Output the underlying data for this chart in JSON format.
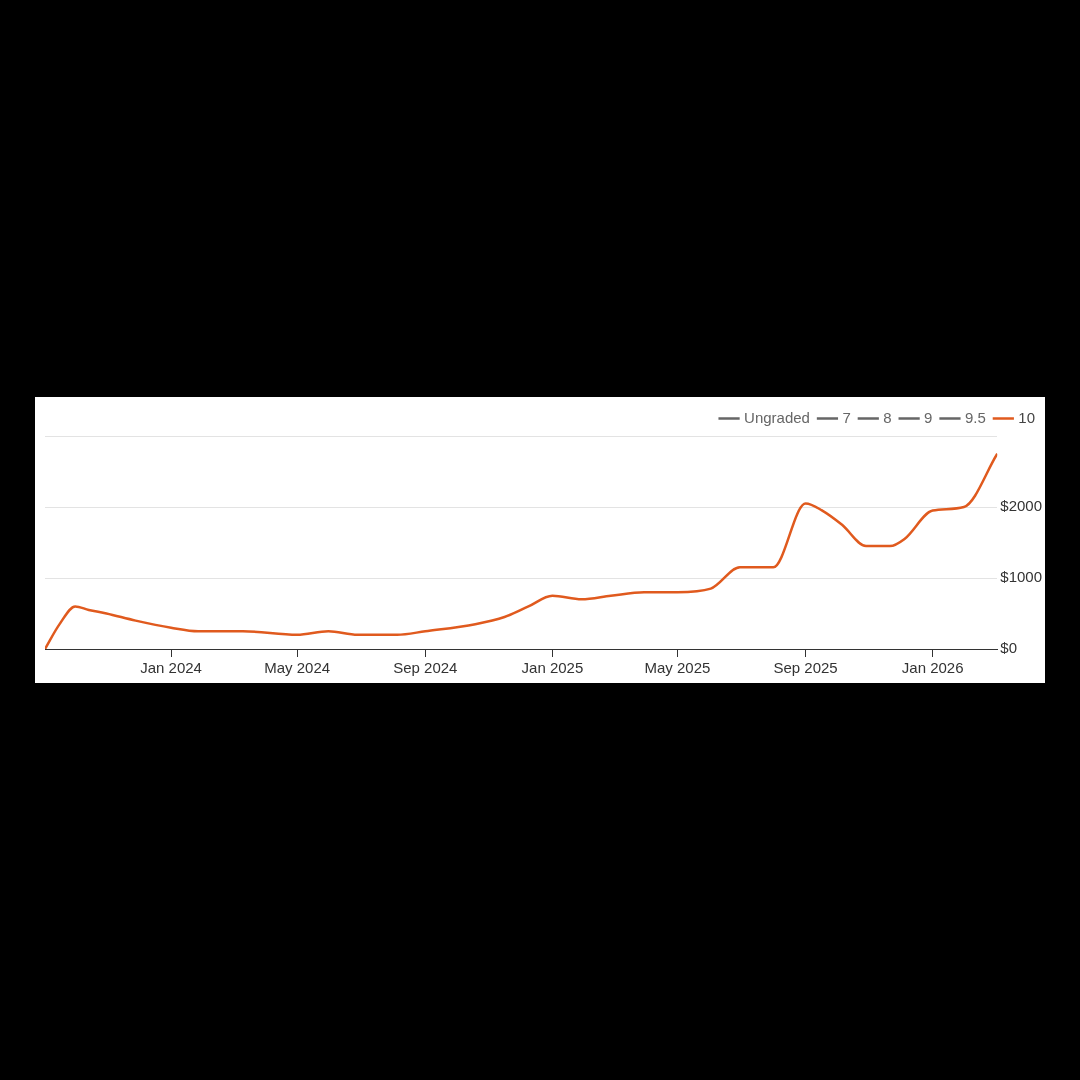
{
  "chart_data": {
    "type": "line",
    "x": [
      "2023-09-02",
      "2023-09-16",
      "2023-10-01",
      "2023-10-14",
      "2023-10-31",
      "2023-11-28",
      "2024-01-01",
      "2024-01-27",
      "2024-03-10",
      "2024-05-01",
      "2024-05-31",
      "2024-06-28",
      "2024-08-05",
      "2024-09-01",
      "2024-10-19",
      "2024-11-16",
      "2024-12-09",
      "2025-01-01",
      "2025-01-29",
      "2025-02-26",
      "2025-03-30",
      "2025-05-01",
      "2025-06-02",
      "2025-06-30",
      "2025-08-01",
      "2025-09-01",
      "2025-09-17",
      "2025-10-06",
      "2025-10-29",
      "2025-11-21",
      "2025-12-05",
      "2026-01-01",
      "2026-01-31",
      "2026-03-04"
    ],
    "series": [
      {
        "name": "Ungraded",
        "color": "#666666",
        "values": [
          null,
          null,
          null,
          null,
          null,
          null,
          null,
          null,
          null,
          null,
          null,
          null,
          null,
          null,
          null,
          null,
          null,
          null,
          null,
          null,
          null,
          null,
          null,
          null,
          null,
          null,
          null,
          null,
          null,
          null,
          null,
          null,
          null,
          null
        ]
      },
      {
        "name": "7",
        "color": "#666666",
        "values": [
          null,
          null,
          null,
          null,
          null,
          null,
          null,
          null,
          null,
          null,
          null,
          null,
          null,
          null,
          null,
          null,
          null,
          null,
          null,
          null,
          null,
          null,
          null,
          null,
          null,
          null,
          null,
          null,
          null,
          null,
          null,
          null,
          null,
          null
        ]
      },
      {
        "name": "8",
        "color": "#666666",
        "values": [
          null,
          null,
          null,
          null,
          null,
          null,
          null,
          null,
          null,
          null,
          null,
          null,
          null,
          null,
          null,
          null,
          null,
          null,
          null,
          null,
          null,
          null,
          null,
          null,
          null,
          null,
          null,
          null,
          null,
          null,
          null,
          null,
          null,
          null
        ]
      },
      {
        "name": "9",
        "color": "#666666",
        "values": [
          null,
          null,
          null,
          null,
          null,
          null,
          null,
          null,
          null,
          null,
          null,
          null,
          null,
          null,
          null,
          null,
          null,
          null,
          null,
          null,
          null,
          null,
          null,
          null,
          null,
          null,
          null,
          null,
          null,
          null,
          null,
          null,
          null,
          null
        ]
      },
      {
        "name": "9.5",
        "color": "#666666",
        "values": [
          null,
          null,
          null,
          null,
          null,
          null,
          null,
          null,
          null,
          null,
          null,
          null,
          null,
          null,
          null,
          null,
          null,
          null,
          null,
          null,
          null,
          null,
          null,
          null,
          null,
          null,
          null,
          null,
          null,
          null,
          null,
          null,
          null,
          null
        ]
      },
      {
        "name": "10",
        "color": "#e05a1e",
        "values": [
          0,
          350,
          600,
          550,
          500,
          400,
          300,
          250,
          250,
          200,
          250,
          200,
          200,
          250,
          350,
          450,
          600,
          750,
          700,
          750,
          800,
          800,
          850,
          1150,
          1150,
          2050,
          1950,
          1750,
          1450,
          1450,
          1550,
          1950,
          2000,
          2750
        ]
      }
    ],
    "xlim": [
      "2023-09-02",
      "2026-03-04"
    ],
    "xticks": [
      {
        "value": "2024-01-01",
        "label": "Jan 2024"
      },
      {
        "value": "2024-05-01",
        "label": "May 2024"
      },
      {
        "value": "2024-09-01",
        "label": "Sep 2024"
      },
      {
        "value": "2025-01-01",
        "label": "Jan 2025"
      },
      {
        "value": "2025-05-01",
        "label": "May 2025"
      },
      {
        "value": "2025-09-01",
        "label": "Sep 2025"
      },
      {
        "value": "2026-01-01",
        "label": "Jan 2026"
      }
    ],
    "ylim": [
      0,
      3000
    ],
    "yticks": [
      {
        "value": 0,
        "label": "$0"
      },
      {
        "value": 1000,
        "label": "$1000"
      },
      {
        "value": 2000,
        "label": "$2000"
      },
      {
        "value": 3000,
        "label": null
      }
    ],
    "grid": "y",
    "legend": "top right",
    "marker": "none",
    "line_style": "solid"
  }
}
